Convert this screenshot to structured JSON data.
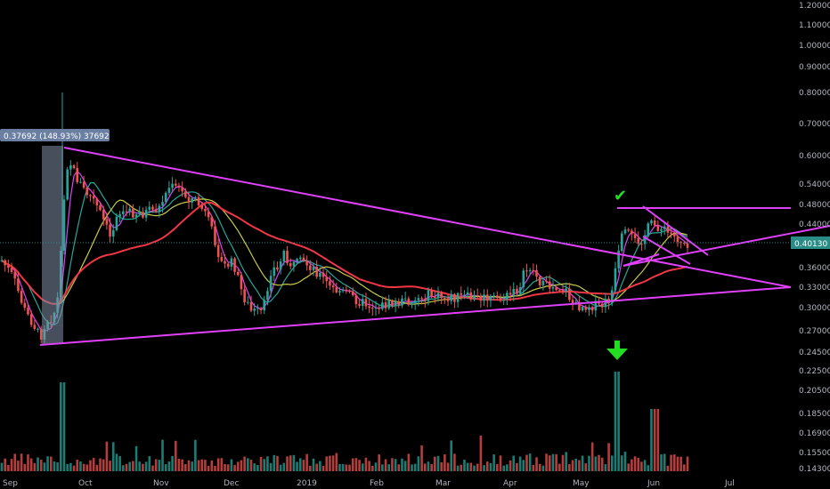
{
  "chart_data": {
    "type": "candlestick",
    "price_axis": {
      "scale": "log",
      "ticks": [
        "1.20000",
        "1.10000",
        "1.00000",
        "0.90000",
        "0.80000",
        "0.70000",
        "0.60000",
        "0.54000",
        "0.48000",
        "0.44000",
        "0.40130",
        "0.36000",
        "0.33000",
        "0.30000",
        "0.27000",
        "0.24500",
        "0.22500",
        "0.20500",
        "0.18500",
        "0.16900",
        "0.15500",
        "0.14300"
      ]
    },
    "time_axis": {
      "labels": [
        "Sep",
        "Oct",
        "Nov",
        "Dec",
        "2019",
        "Feb",
        "Mar",
        "Apr",
        "May",
        "Jun",
        "Jul"
      ]
    },
    "last_price": "0.40130",
    "measure_label": "0.37692 (148.93%) 37692",
    "moving_averages": [
      {
        "color": "#e040fb"
      },
      {
        "color": "#26a69a"
      },
      {
        "color": "#c9c94a"
      },
      {
        "color": "#f23645"
      }
    ],
    "annotations": {
      "check_mark": "✔",
      "down_arrow": "🡇"
    },
    "colors": {
      "up": "#26a69a",
      "down": "#ef5350",
      "trendline": "#e040fb",
      "measure": "#7f8fa6",
      "last_price": "#2a8c87",
      "annotation": "#22dd22"
    }
  }
}
